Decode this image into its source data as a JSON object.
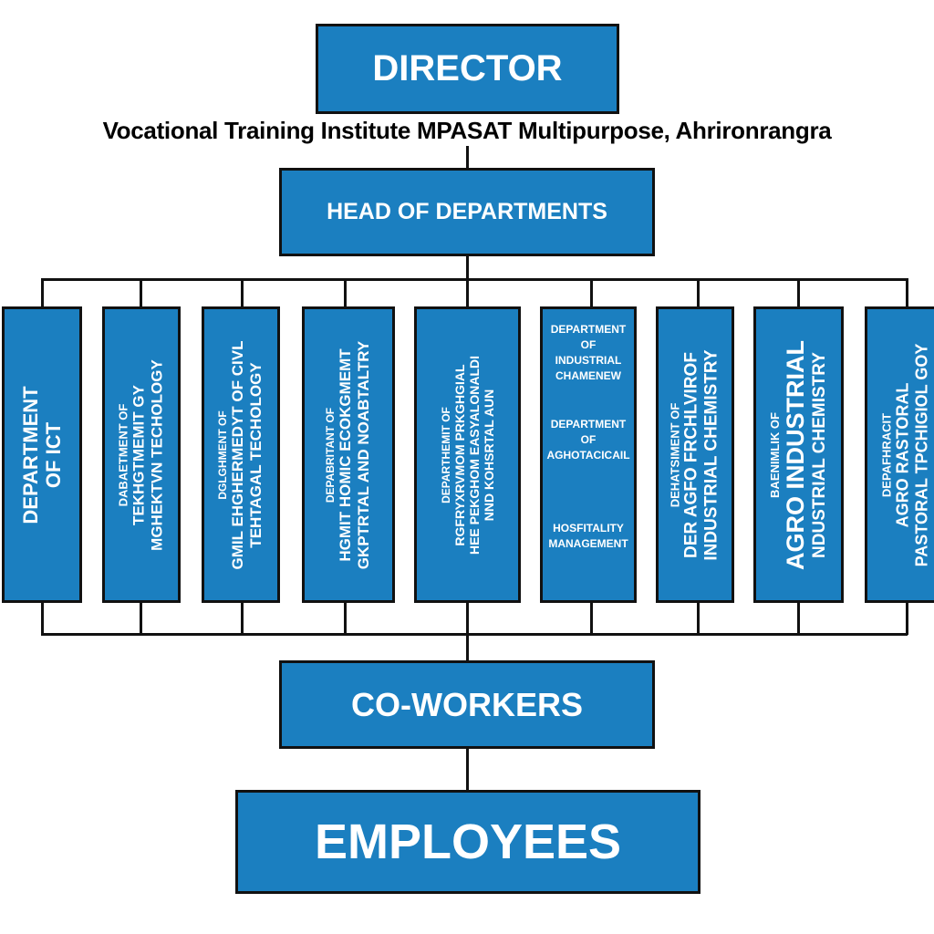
{
  "chart": {
    "director": "DIRECTOR",
    "institute": "Vocational Training Institute  MPASAT  Multipurpose,  Ahrironrangra",
    "heads": "HEAD OF DEPARTMENTS",
    "coworkers": "CO-WORKERS",
    "employees": "EMPLOYEES"
  },
  "departments": [
    {
      "lines": [
        "DEPARTMENT",
        "OF ICT"
      ]
    },
    {
      "lines": [
        "DABAETMENT OF",
        "TEKHGTMEMIT GY",
        "MGHEKTVN TECHOLOGY"
      ]
    },
    {
      "lines": [
        "DGLGHMENT OF",
        "GMIL EHGHERMEDYT OF CIVL",
        "TEHTAGAL TECHOLOGY"
      ]
    },
    {
      "lines": [
        "DEPABRITANT OF",
        "HGMIT HOMIC ECOKGMEMT",
        "GKPTRTAL AND NOABTALTRY"
      ]
    },
    {
      "lines": [
        "DEPARTHEMIT OF",
        "RGFRYXRVMOM PRKGHGIAL",
        "HEE PEKGHOM EASYALONALDI",
        "NND KOHSRTAL AUN"
      ]
    },
    {
      "groups": [
        [
          "DEPARTMENT",
          "OF",
          "INDUSTRIAL",
          "CHAMENEW"
        ],
        [
          "DEPARTMENT",
          "OF",
          "AGHOTACICAIL"
        ],
        [
          "HOSFITALITY",
          "MANAGEMENT"
        ]
      ]
    },
    {
      "lines": [
        "DEHATSIMENT OF",
        "DER AGFO FRCHLVIROF",
        "INDUSTRIAL CHEMISTRY"
      ]
    },
    {
      "lines": [
        "BAENIMLIK OF",
        "AGRO INDUSTRIAL",
        "NDUSTRIAL CHEMISTRY"
      ]
    },
    {
      "lines": [
        "DEPAFHRACIT",
        "AGRO RASTORAL",
        "PASTORAL TPCHIGIOL GOY"
      ]
    }
  ]
}
